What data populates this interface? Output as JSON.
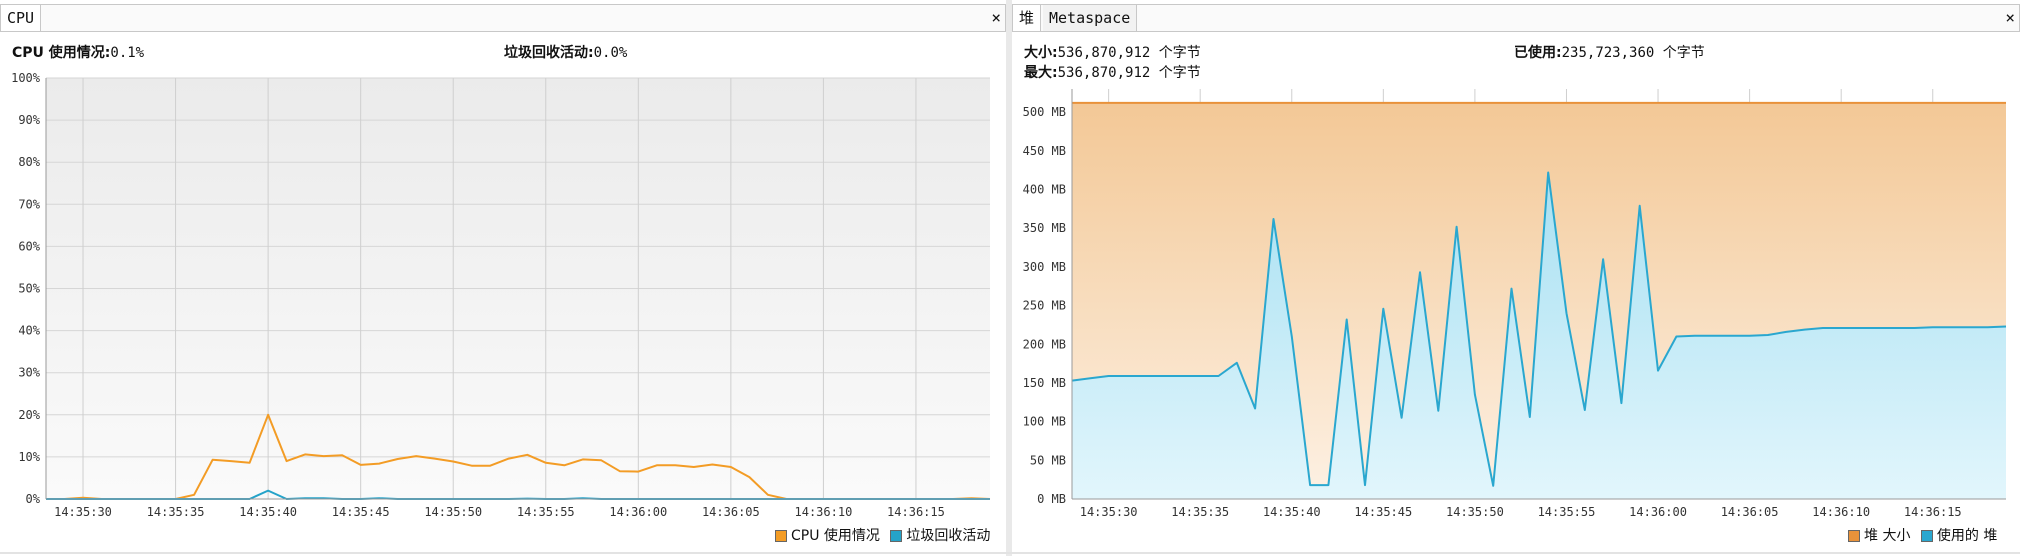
{
  "cpu_panel": {
    "tab_label": "CPU",
    "close_glyph": "×",
    "cpu_usage_label": "CPU 使用情况:",
    "cpu_usage_value": "0.1%",
    "gc_activity_label": "垃圾回收活动:",
    "gc_activity_value": "0.0%",
    "legend": {
      "cpu": "CPU 使用情况",
      "gc": "垃圾回收活动"
    }
  },
  "heap_panel": {
    "tabs": [
      "堆",
      "Metaspace"
    ],
    "close_glyph": "×",
    "size_label": "大小:",
    "size_value": "536,870,912 个字节",
    "max_label": "最大:",
    "max_value": "536,870,912 个字节",
    "used_label": "已使用:",
    "used_value": "235,723,360 个字节",
    "legend": {
      "size": "堆 大小",
      "used": "使用的 堆"
    }
  },
  "colors": {
    "cpu": "#f39c25",
    "gc": "#25a3c9",
    "heap_size": "#e8923a",
    "heap_used": "#2aa7cf"
  },
  "chart_data": [
    {
      "type": "line",
      "ylim": [
        0,
        100
      ],
      "y_ticks": [
        "0%",
        "10%",
        "20%",
        "30%",
        "40%",
        "50%",
        "60%",
        "70%",
        "80%",
        "90%",
        "100%"
      ],
      "x_ticks": [
        "14:35:30",
        "14:35:35",
        "14:35:40",
        "14:35:45",
        "14:35:50",
        "14:35:55",
        "14:36:00",
        "14:36:05",
        "14:36:10",
        "14:36:15"
      ],
      "x": [
        "14:35:28",
        "14:35:29",
        "14:35:30",
        "14:35:31",
        "14:35:32",
        "14:35:33",
        "14:35:34",
        "14:35:35",
        "14:35:36",
        "14:35:37",
        "14:35:38",
        "14:35:39",
        "14:35:40",
        "14:35:41",
        "14:35:42",
        "14:35:43",
        "14:35:44",
        "14:35:45",
        "14:35:46",
        "14:35:47",
        "14:35:48",
        "14:35:49",
        "14:35:50",
        "14:35:51",
        "14:35:52",
        "14:35:53",
        "14:35:54",
        "14:35:55",
        "14:35:56",
        "14:35:57",
        "14:35:58",
        "14:35:59",
        "14:36:00",
        "14:36:01",
        "14:36:02",
        "14:36:03",
        "14:36:04",
        "14:36:05",
        "14:36:06",
        "14:36:07",
        "14:36:08",
        "14:36:09",
        "14:36:10",
        "14:36:11",
        "14:36:12",
        "14:36:13",
        "14:36:14",
        "14:36:15",
        "14:36:16",
        "14:36:17",
        "14:36:18",
        "14:36:19"
      ],
      "series": [
        {
          "name": "CPU 使用情况",
          "values": [
            0,
            0,
            0.3,
            0,
            0,
            0,
            0,
            0,
            1,
            9.3,
            9,
            8.6,
            20,
            9,
            10.6,
            10.2,
            10.4,
            8.1,
            8.4,
            9.5,
            10.2,
            9.6,
            8.9,
            7.9,
            7.9,
            9.6,
            10.5,
            8.6,
            8,
            9.4,
            9.2,
            6.6,
            6.5,
            8,
            8,
            7.6,
            8.2,
            7.6,
            5.2,
            1,
            0,
            0,
            0,
            0,
            0,
            0,
            0,
            0,
            0,
            0,
            0.2,
            0
          ]
        },
        {
          "name": "垃圾回收活动",
          "values": [
            0,
            0,
            0,
            0,
            0,
            0,
            0,
            0,
            0,
            0,
            0,
            0,
            2,
            0,
            0.2,
            0.2,
            0,
            0,
            0.2,
            0,
            0,
            0,
            0,
            0,
            0,
            0,
            0.1,
            0,
            0,
            0.2,
            0,
            0,
            0,
            0,
            0,
            0,
            0,
            0,
            0,
            0,
            0,
            0,
            0,
            0,
            0,
            0,
            0,
            0,
            0,
            0,
            0,
            0
          ]
        }
      ]
    },
    {
      "type": "area",
      "ylim": [
        0,
        530
      ],
      "y_ticks": [
        "0 MB",
        "50 MB",
        "100 MB",
        "150 MB",
        "200 MB",
        "250 MB",
        "300 MB",
        "350 MB",
        "400 MB",
        "450 MB",
        "500 MB"
      ],
      "x_ticks": [
        "14:35:30",
        "14:35:35",
        "14:35:40",
        "14:35:45",
        "14:35:50",
        "14:35:55",
        "14:36:00",
        "14:36:05",
        "14:36:10",
        "14:36:15"
      ],
      "x": [
        "14:35:28",
        "14:35:29",
        "14:35:30",
        "14:35:31",
        "14:35:32",
        "14:35:33",
        "14:35:34",
        "14:35:35",
        "14:35:36",
        "14:35:37",
        "14:35:38",
        "14:35:39",
        "14:35:40",
        "14:35:41",
        "14:35:42",
        "14:35:43",
        "14:35:44",
        "14:35:45",
        "14:35:46",
        "14:35:47",
        "14:35:48",
        "14:35:49",
        "14:35:50",
        "14:35:51",
        "14:35:52",
        "14:35:53",
        "14:35:54",
        "14:35:55",
        "14:35:56",
        "14:35:57",
        "14:35:58",
        "14:35:59",
        "14:36:00",
        "14:36:01",
        "14:36:02",
        "14:36:03",
        "14:36:04",
        "14:36:05",
        "14:36:06",
        "14:36:07",
        "14:36:08",
        "14:36:09",
        "14:36:10",
        "14:36:11",
        "14:36:12",
        "14:36:13",
        "14:36:14",
        "14:36:15",
        "14:36:16",
        "14:36:17",
        "14:36:18",
        "14:36:19"
      ],
      "series": [
        {
          "name": "堆 大小",
          "values": [
            512,
            512,
            512,
            512,
            512,
            512,
            512,
            512,
            512,
            512,
            512,
            512,
            512,
            512,
            512,
            512,
            512,
            512,
            512,
            512,
            512,
            512,
            512,
            512,
            512,
            512,
            512,
            512,
            512,
            512,
            512,
            512,
            512,
            512,
            512,
            512,
            512,
            512,
            512,
            512,
            512,
            512,
            512,
            512,
            512,
            512,
            512,
            512,
            512,
            512,
            512,
            512
          ]
        },
        {
          "name": "使用的 堆",
          "values": [
            153,
            156,
            159,
            159,
            159,
            159,
            159,
            159,
            159,
            176,
            117,
            362,
            210,
            18,
            18,
            232,
            18,
            246,
            105,
            293,
            114,
            352,
            135,
            17,
            272,
            106,
            422,
            240,
            115,
            310,
            124,
            379,
            166,
            210,
            211,
            211,
            211,
            211,
            212,
            216,
            219,
            221,
            221,
            221,
            221,
            221,
            221,
            222,
            222,
            222,
            222,
            223
          ]
        }
      ]
    }
  ]
}
